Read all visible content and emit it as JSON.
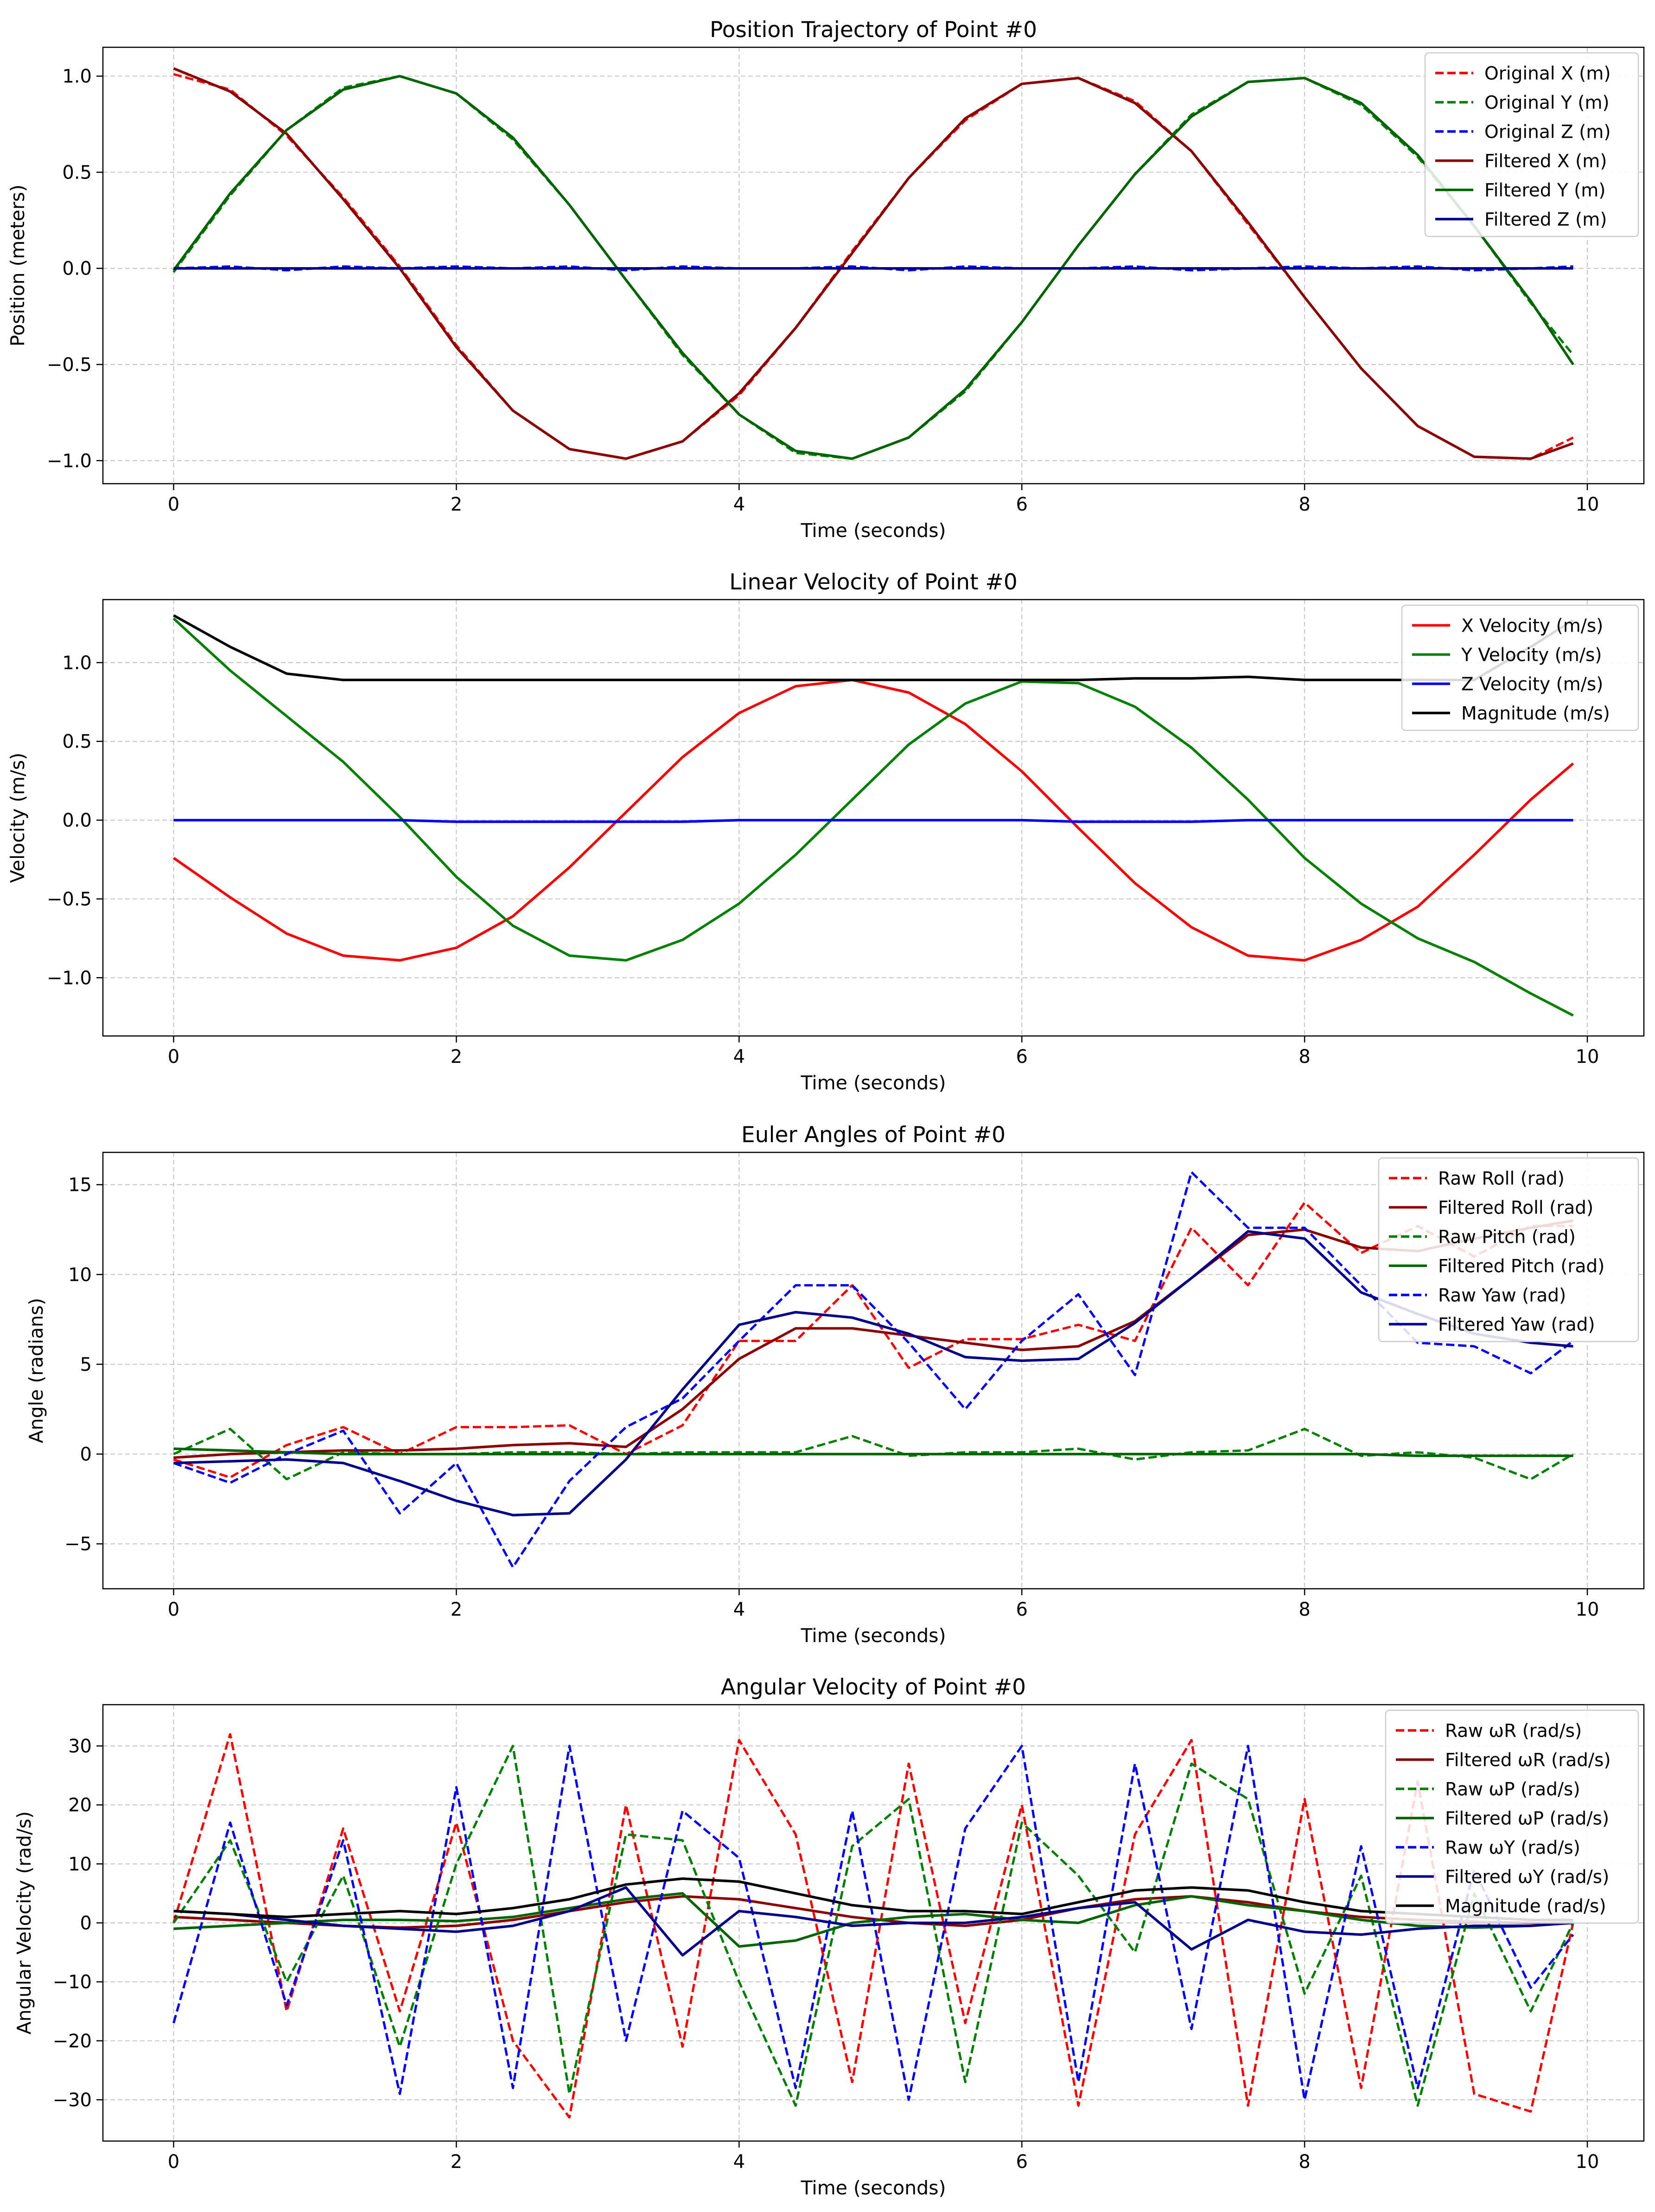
{
  "chart_data": [
    {
      "type": "line",
      "title": "Position Trajectory of Point #0",
      "xlabel": "Time (seconds)",
      "ylabel": "Position (meters)",
      "xlim": [
        -0.5,
        10.4
      ],
      "ylim": [
        -1.12,
        1.15
      ],
      "xticks": [
        0,
        2,
        4,
        6,
        8,
        10
      ],
      "yticks": [
        -1.0,
        -0.5,
        0.0,
        0.5,
        1.0
      ],
      "ytick_labels": [
        "−1.0",
        "−0.5",
        "0.0",
        "0.5",
        "1.0"
      ],
      "grid": true,
      "legend_position": "upper right",
      "x": [
        0,
        0.4,
        0.8,
        1.2,
        1.6,
        2.0,
        2.4,
        2.8,
        3.2,
        3.6,
        4.0,
        4.4,
        4.8,
        5.2,
        5.6,
        6.0,
        6.4,
        6.8,
        7.2,
        7.6,
        8.0,
        8.4,
        8.8,
        9.2,
        9.6,
        9.9
      ],
      "series": [
        {
          "name": "Original X (m)",
          "color": "#ff0000",
          "dash": true,
          "values": [
            1.01,
            0.93,
            0.69,
            0.37,
            0.01,
            -0.4,
            -0.74,
            -0.94,
            -0.99,
            -0.9,
            -0.66,
            -0.31,
            0.09,
            0.47,
            0.77,
            0.96,
            0.99,
            0.87,
            0.61,
            0.23,
            -0.15,
            -0.52,
            -0.82,
            -0.98,
            -0.99,
            -0.88
          ]
        },
        {
          "name": "Original Y (m)",
          "color": "#008000",
          "dash": true,
          "values": [
            -0.02,
            0.38,
            0.72,
            0.94,
            1.0,
            0.91,
            0.67,
            0.33,
            -0.06,
            -0.45,
            -0.76,
            -0.96,
            -0.99,
            -0.88,
            -0.64,
            -0.28,
            0.12,
            0.49,
            0.8,
            0.97,
            0.99,
            0.85,
            0.58,
            0.22,
            -0.18,
            -0.45
          ]
        },
        {
          "name": "Original Z (m)",
          "color": "#0000ff",
          "dash": true,
          "values": [
            0.0,
            0.01,
            -0.01,
            0.01,
            0.0,
            0.01,
            0.0,
            0.01,
            -0.01,
            0.01,
            0.0,
            0.0,
            0.01,
            -0.01,
            0.01,
            0.0,
            0.0,
            0.01,
            -0.01,
            0.0,
            0.01,
            0.0,
            0.01,
            -0.01,
            0.0,
            0.01
          ]
        },
        {
          "name": "Filtered X (m)",
          "color": "#8b0000",
          "dash": false,
          "values": [
            1.04,
            0.92,
            0.7,
            0.36,
            0.0,
            -0.41,
            -0.74,
            -0.94,
            -0.99,
            -0.9,
            -0.65,
            -0.31,
            0.08,
            0.47,
            0.78,
            0.96,
            0.99,
            0.86,
            0.61,
            0.24,
            -0.15,
            -0.52,
            -0.82,
            -0.98,
            -0.99,
            -0.91
          ]
        },
        {
          "name": "Filtered Y (m)",
          "color": "#006400",
          "dash": false,
          "values": [
            -0.01,
            0.39,
            0.72,
            0.93,
            1.0,
            0.91,
            0.68,
            0.33,
            -0.06,
            -0.44,
            -0.76,
            -0.95,
            -0.99,
            -0.88,
            -0.63,
            -0.28,
            0.12,
            0.49,
            0.79,
            0.97,
            0.99,
            0.86,
            0.59,
            0.22,
            -0.17,
            -0.5
          ]
        },
        {
          "name": "Filtered Z (m)",
          "color": "#00008b",
          "dash": false,
          "values": [
            0.0,
            0.0,
            0.0,
            0.0,
            0.0,
            0.0,
            0.0,
            0.0,
            0.0,
            0.0,
            0.0,
            0.0,
            0.0,
            0.0,
            0.0,
            0.0,
            0.0,
            0.0,
            0.0,
            0.0,
            0.0,
            0.0,
            0.0,
            0.0,
            0.0,
            0.0
          ]
        }
      ]
    },
    {
      "type": "line",
      "title": "Linear Velocity of Point #0",
      "xlabel": "Time (seconds)",
      "ylabel": "Velocity (m/s)",
      "xlim": [
        -0.5,
        10.4
      ],
      "ylim": [
        -1.37,
        1.4
      ],
      "xticks": [
        0,
        2,
        4,
        6,
        8,
        10
      ],
      "yticks": [
        -1.0,
        -0.5,
        0.0,
        0.5,
        1.0
      ],
      "ytick_labels": [
        "−1.0",
        "−0.5",
        "0.0",
        "0.5",
        "1.0"
      ],
      "grid": true,
      "legend_position": "upper right",
      "x": [
        0,
        0.4,
        0.8,
        1.2,
        1.6,
        2.0,
        2.4,
        2.8,
        3.2,
        3.6,
        4.0,
        4.4,
        4.8,
        5.2,
        5.6,
        6.0,
        6.4,
        6.8,
        7.2,
        7.6,
        8.0,
        8.4,
        8.8,
        9.2,
        9.6,
        9.9
      ],
      "series": [
        {
          "name": "X Velocity (m/s)",
          "color": "#ff0000",
          "dash": false,
          "values": [
            -0.24,
            -0.49,
            -0.72,
            -0.86,
            -0.89,
            -0.81,
            -0.61,
            -0.3,
            0.05,
            0.4,
            0.68,
            0.85,
            0.89,
            0.81,
            0.61,
            0.31,
            -0.05,
            -0.4,
            -0.68,
            -0.86,
            -0.89,
            -0.76,
            -0.55,
            -0.22,
            0.13,
            0.36
          ]
        },
        {
          "name": "Y Velocity (m/s)",
          "color": "#008000",
          "dash": false,
          "values": [
            1.28,
            0.95,
            0.66,
            0.37,
            0.02,
            -0.36,
            -0.67,
            -0.86,
            -0.89,
            -0.76,
            -0.53,
            -0.22,
            0.13,
            0.48,
            0.74,
            0.88,
            0.87,
            0.72,
            0.46,
            0.13,
            -0.24,
            -0.53,
            -0.75,
            -0.9,
            -1.1,
            -1.24
          ]
        },
        {
          "name": "Z Velocity (m/s)",
          "color": "#0000ff",
          "dash": false,
          "values": [
            0.0,
            0.0,
            0.0,
            0.0,
            0.0,
            -0.01,
            -0.01,
            -0.01,
            -0.01,
            -0.01,
            0.0,
            0.0,
            0.0,
            0.0,
            0.0,
            0.0,
            -0.01,
            -0.01,
            -0.01,
            0.0,
            0.0,
            0.0,
            0.0,
            0.0,
            0.0,
            0.0
          ]
        },
        {
          "name": "Magnitude (m/s)",
          "color": "#000000",
          "dash": false,
          "values": [
            1.3,
            1.1,
            0.93,
            0.89,
            0.89,
            0.89,
            0.89,
            0.89,
            0.89,
            0.89,
            0.89,
            0.89,
            0.89,
            0.89,
            0.89,
            0.89,
            0.89,
            0.9,
            0.9,
            0.91,
            0.89,
            0.89,
            0.89,
            0.89,
            1.1,
            1.27
          ]
        }
      ]
    },
    {
      "type": "line",
      "title": "Euler Angles of Point #0",
      "xlabel": "Time (seconds)",
      "ylabel": "Angle (radians)",
      "xlim": [
        -0.5,
        10.4
      ],
      "ylim": [
        -7.5,
        16.8
      ],
      "xticks": [
        0,
        2,
        4,
        6,
        8,
        10
      ],
      "yticks": [
        -5,
        0,
        5,
        10,
        15
      ],
      "ytick_labels": [
        "−5",
        "0",
        "5",
        "10",
        "15"
      ],
      "grid": true,
      "legend_position": "upper right",
      "x": [
        0,
        0.4,
        0.8,
        1.2,
        1.6,
        2.0,
        2.4,
        2.8,
        3.2,
        3.6,
        4.0,
        4.4,
        4.8,
        5.2,
        5.6,
        6.0,
        6.4,
        6.8,
        7.2,
        7.6,
        8.0,
        8.4,
        8.8,
        9.2,
        9.6,
        9.9
      ],
      "series": [
        {
          "name": "Raw Roll (rad)",
          "color": "#ff0000",
          "dash": true,
          "values": [
            -0.3,
            -1.3,
            0.5,
            1.5,
            0.0,
            1.5,
            1.5,
            1.6,
            0.0,
            1.6,
            6.3,
            6.3,
            9.4,
            4.8,
            6.4,
            6.4,
            7.2,
            6.3,
            12.6,
            9.4,
            14.0,
            11.2,
            12.7,
            11.0,
            12.7,
            12.7
          ]
        },
        {
          "name": "Filtered Roll (rad)",
          "color": "#8b0000",
          "dash": false,
          "values": [
            -0.2,
            0.0,
            0.1,
            0.2,
            0.2,
            0.3,
            0.5,
            0.6,
            0.4,
            2.5,
            5.3,
            7.0,
            7.0,
            6.6,
            6.2,
            5.8,
            6.0,
            7.4,
            9.8,
            12.2,
            12.5,
            11.5,
            11.3,
            12.0,
            12.6,
            13.0
          ]
        },
        {
          "name": "Raw Pitch (rad)",
          "color": "#008000",
          "dash": true,
          "values": [
            0.0,
            1.4,
            -1.4,
            0.1,
            0.0,
            0.0,
            0.1,
            0.1,
            0.0,
            0.1,
            0.1,
            0.1,
            1.0,
            -0.1,
            0.1,
            0.1,
            0.3,
            -0.3,
            0.1,
            0.2,
            1.4,
            -0.1,
            0.1,
            -0.2,
            -1.4,
            0.0
          ]
        },
        {
          "name": "Filtered Pitch (rad)",
          "color": "#006400",
          "dash": false,
          "values": [
            0.3,
            0.2,
            0.1,
            0.0,
            0.0,
            0.0,
            0.0,
            0.0,
            0.0,
            0.0,
            0.0,
            0.0,
            0.0,
            0.0,
            0.0,
            0.0,
            0.0,
            0.0,
            0.0,
            0.0,
            0.0,
            0.0,
            -0.1,
            -0.1,
            -0.1,
            -0.1
          ]
        },
        {
          "name": "Raw Yaw (rad)",
          "color": "#0000ff",
          "dash": true,
          "values": [
            -0.5,
            -1.6,
            0.0,
            1.3,
            -3.3,
            -0.5,
            -6.3,
            -1.5,
            1.5,
            3.1,
            6.3,
            9.4,
            9.4,
            6.2,
            2.5,
            6.3,
            8.9,
            4.4,
            15.7,
            12.6,
            12.6,
            9.4,
            6.2,
            6.0,
            4.5,
            6.3
          ]
        },
        {
          "name": "Filtered Yaw (rad)",
          "color": "#00008b",
          "dash": false,
          "values": [
            -0.5,
            -0.4,
            -0.3,
            -0.5,
            -1.5,
            -2.6,
            -3.4,
            -3.3,
            -0.3,
            3.6,
            7.2,
            7.9,
            7.6,
            6.7,
            5.4,
            5.2,
            5.3,
            7.3,
            9.8,
            12.4,
            12.0,
            9.0,
            7.8,
            6.7,
            6.2,
            6.0
          ]
        }
      ]
    },
    {
      "type": "line",
      "title": "Angular Velocity of Point #0",
      "xlabel": "Time (seconds)",
      "ylabel": "Angular Velocity (rad/s)",
      "xlim": [
        -0.5,
        10.4
      ],
      "ylim": [
        -37.0,
        37.0
      ],
      "xticks": [
        0,
        2,
        4,
        6,
        8,
        10
      ],
      "yticks": [
        -30,
        -20,
        -10,
        0,
        10,
        20,
        30
      ],
      "ytick_labels": [
        "−30",
        "−20",
        "−10",
        "0",
        "10",
        "20",
        "30"
      ],
      "grid": true,
      "legend_position": "upper right",
      "x": [
        0,
        0.4,
        0.8,
        1.2,
        1.6,
        2.0,
        2.4,
        2.8,
        3.2,
        3.6,
        4.0,
        4.4,
        4.8,
        5.2,
        5.6,
        6.0,
        6.4,
        6.8,
        7.2,
        7.6,
        8.0,
        8.4,
        8.8,
        9.2,
        9.6,
        9.9
      ],
      "series": [
        {
          "name": "Raw ωR (rad/s)",
          "color": "#ff0000",
          "dash": true,
          "values": [
            0.0,
            32.0,
            -15.0,
            16.0,
            -15.0,
            17.0,
            -20.0,
            -33.0,
            20.0,
            -21.0,
            31.0,
            15.0,
            -27.0,
            27.0,
            -17.0,
            20.0,
            -31.0,
            15.0,
            31.0,
            -31.0,
            21.0,
            -28.0,
            24.0,
            -29.0,
            -32.0,
            0.0
          ]
        },
        {
          "name": "Filtered ωR (rad/s)",
          "color": "#8b0000",
          "dash": false,
          "values": [
            1.0,
            0.5,
            0.0,
            -0.5,
            -0.8,
            -0.5,
            0.5,
            2.0,
            3.5,
            4.5,
            4.0,
            2.5,
            1.0,
            0.0,
            -0.5,
            0.5,
            2.5,
            4.0,
            4.5,
            3.5,
            2.0,
            1.0,
            0.5,
            0.2,
            0.0,
            0.0
          ]
        },
        {
          "name": "Raw ωP (rad/s)",
          "color": "#008000",
          "dash": true,
          "values": [
            0.0,
            14.0,
            -10.0,
            8.0,
            -21.0,
            10.0,
            30.0,
            -29.0,
            15.0,
            14.0,
            -10.0,
            -31.0,
            13.0,
            21.0,
            -27.0,
            17.0,
            8.0,
            -5.0,
            27.0,
            21.0,
            -12.0,
            8.0,
            -31.0,
            5.0,
            -15.0,
            0.0
          ]
        },
        {
          "name": "Filtered ωP (rad/s)",
          "color": "#006400",
          "dash": false,
          "values": [
            -1.0,
            -0.5,
            0.0,
            0.5,
            0.5,
            0.3,
            1.0,
            2.5,
            4.0,
            5.0,
            -4.0,
            -3.0,
            0.0,
            1.0,
            1.5,
            0.5,
            0.0,
            3.0,
            4.5,
            3.0,
            2.0,
            0.5,
            -0.5,
            -0.8,
            -0.5,
            0.0
          ]
        },
        {
          "name": "Raw ωY (rad/s)",
          "color": "#0000ff",
          "dash": true,
          "values": [
            -17.0,
            17.0,
            -14.0,
            14.0,
            -29.0,
            23.0,
            -28.0,
            30.0,
            -20.0,
            19.0,
            11.0,
            -28.0,
            19.0,
            -30.0,
            16.0,
            30.0,
            -27.0,
            27.0,
            -18.0,
            30.0,
            -30.0,
            13.0,
            -28.0,
            9.0,
            -11.0,
            -2.0
          ]
        },
        {
          "name": "Filtered ωY (rad/s)",
          "color": "#00008b",
          "dash": false,
          "values": [
            2.0,
            1.5,
            0.5,
            -0.5,
            -1.0,
            -1.5,
            -0.5,
            2.0,
            6.0,
            -5.5,
            2.0,
            1.0,
            -0.5,
            0.0,
            0.0,
            1.0,
            2.5,
            3.5,
            -4.5,
            0.5,
            -1.5,
            -2.0,
            -1.0,
            -0.5,
            -0.5,
            0.0
          ]
        },
        {
          "name": "Magnitude (rad/s)",
          "color": "#000000",
          "dash": false,
          "values": [
            2.0,
            1.5,
            1.0,
            1.5,
            2.0,
            1.5,
            2.5,
            4.0,
            6.5,
            7.5,
            7.0,
            5.0,
            3.0,
            2.0,
            2.0,
            1.5,
            3.5,
            5.5,
            6.0,
            5.5,
            3.5,
            2.0,
            1.5,
            1.0,
            0.5,
            0.5
          ]
        }
      ]
    }
  ]
}
